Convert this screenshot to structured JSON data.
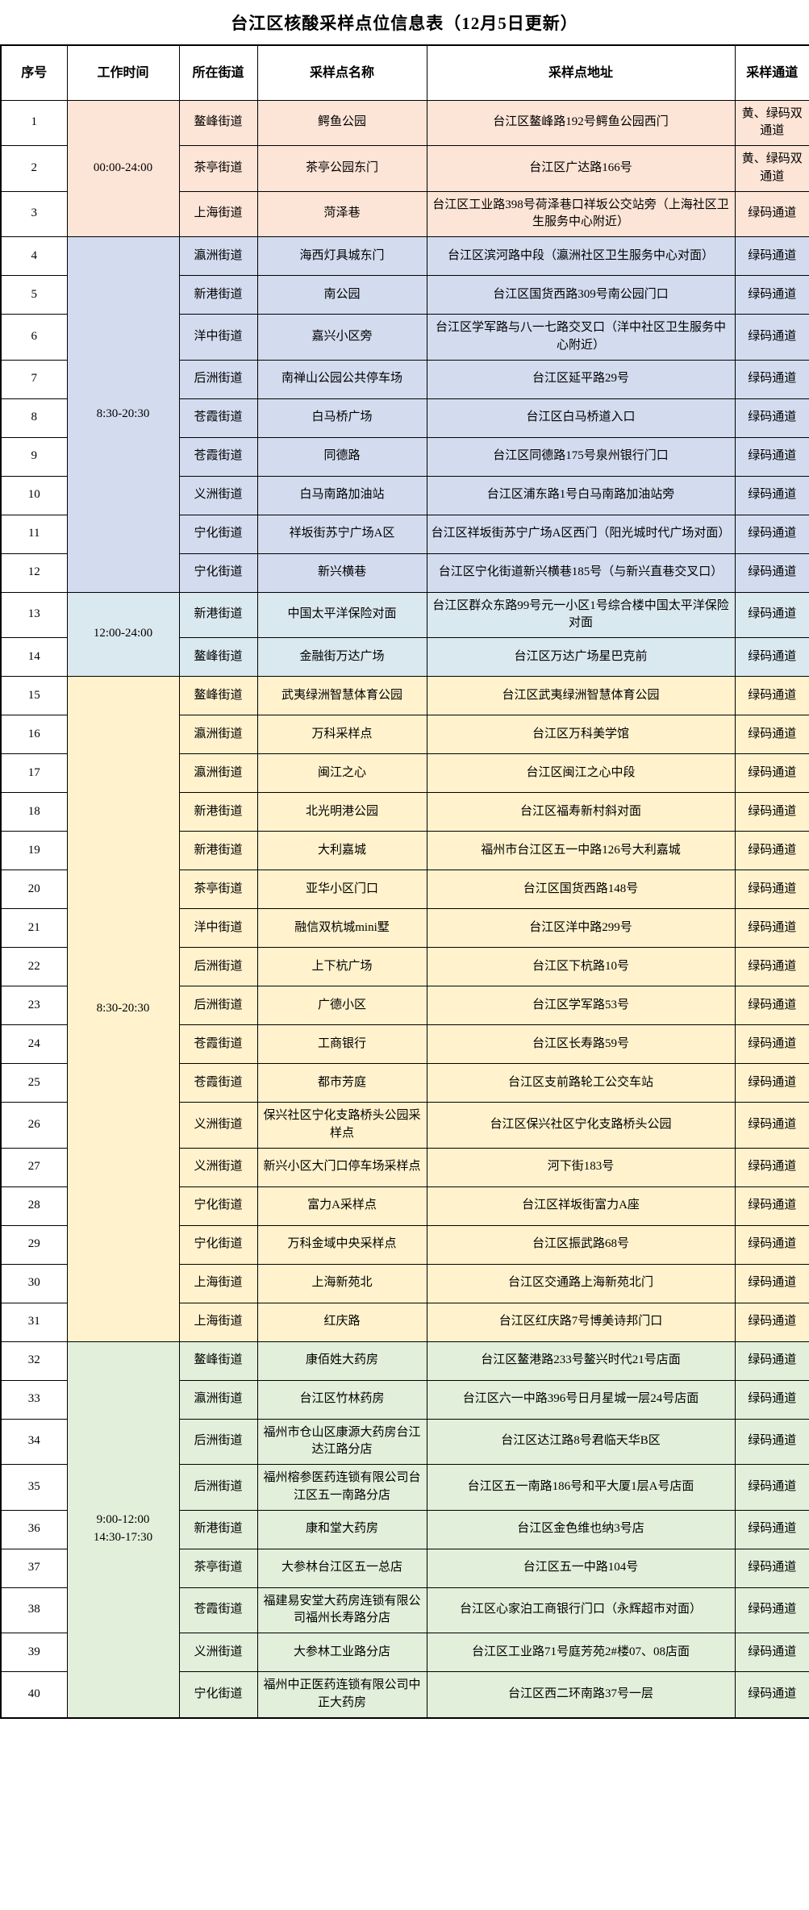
{
  "title": "台江区核酸采样点位信息表（12月5日更新）",
  "table": {
    "headers": [
      "序号",
      "工作时间",
      "所在街道",
      "采样点名称",
      "采样点地址",
      "采样通道"
    ],
    "group_colors": {
      "orange": "#FCE4D6",
      "blue": "#D3DCEF",
      "cyan": "#DAE8EF",
      "yellow": "#FFF2CC",
      "green": "#E2EFDA"
    },
    "time_groups": [
      {
        "time": "00:00-24:00",
        "color": "#FCE4D6",
        "rows": [
          {
            "no": "1",
            "street": "鳌峰街道",
            "name": "鳄鱼公园",
            "address": "台江区鳌峰路192号鳄鱼公园西门",
            "channel": "黄、绿码双通道"
          },
          {
            "no": "2",
            "street": "茶亭街道",
            "name": "茶亭公园东门",
            "address": "台江区广达路166号",
            "channel": "黄、绿码双通道"
          },
          {
            "no": "3",
            "street": "上海街道",
            "name": "菏泽巷",
            "address": "台江区工业路398号荷泽巷口祥坂公交站旁（上海社区卫生服务中心附近）",
            "channel": "绿码通道"
          }
        ]
      },
      {
        "time": "8:30-20:30",
        "color": "#D3DCEF",
        "rows": [
          {
            "no": "4",
            "street": "瀛洲街道",
            "name": "海西灯具城东门",
            "address": "台江区滨河路中段（瀛洲社区卫生服务中心对面）",
            "channel": "绿码通道"
          },
          {
            "no": "5",
            "street": "新港街道",
            "name": "南公园",
            "address": "台江区国货西路309号南公园门口",
            "channel": "绿码通道"
          },
          {
            "no": "6",
            "street": "洋中街道",
            "name": "嘉兴小区旁",
            "address": "台江区学军路与八一七路交叉口（洋中社区卫生服务中心附近）",
            "channel": "绿码通道"
          },
          {
            "no": "7",
            "street": "后洲街道",
            "name": "南禅山公园公共停车场",
            "address": "台江区延平路29号",
            "channel": "绿码通道"
          },
          {
            "no": "8",
            "street": "苍霞街道",
            "name": "白马桥广场",
            "address": "台江区白马桥道入口",
            "channel": "绿码通道"
          },
          {
            "no": "9",
            "street": "苍霞街道",
            "name": "同德路",
            "address": "台江区同德路175号泉州银行门口",
            "channel": "绿码通道"
          },
          {
            "no": "10",
            "street": "义洲街道",
            "name": "白马南路加油站",
            "address": "台江区浦东路1号白马南路加油站旁",
            "channel": "绿码通道"
          },
          {
            "no": "11",
            "street": "宁化街道",
            "name": "祥坂街苏宁广场A区",
            "address": "台江区祥坂街苏宁广场A区西门（阳光城时代广场对面）",
            "channel": "绿码通道"
          },
          {
            "no": "12",
            "street": "宁化街道",
            "name": "新兴横巷",
            "address": "台江区宁化街道新兴横巷185号（与新兴直巷交叉口）",
            "channel": "绿码通道"
          }
        ]
      },
      {
        "time": "12:00-24:00",
        "color": "#DAE8EF",
        "rows": [
          {
            "no": "13",
            "street": "新港街道",
            "name": "中国太平洋保险对面",
            "address": "台江区群众东路99号元一小区1号综合楼中国太平洋保险对面",
            "channel": "绿码通道"
          },
          {
            "no": "14",
            "street": "鳌峰街道",
            "name": "金融街万达广场",
            "address": "台江区万达广场星巴克前",
            "channel": "绿码通道"
          }
        ]
      },
      {
        "time": "8:30-20:30",
        "color": "#FFF2CC",
        "rows": [
          {
            "no": "15",
            "street": "鳌峰街道",
            "name": "武夷绿洲智慧体育公园",
            "address": "台江区武夷绿洲智慧体育公园",
            "channel": "绿码通道"
          },
          {
            "no": "16",
            "street": "瀛洲街道",
            "name": "万科采样点",
            "address": "台江区万科美学馆",
            "channel": "绿码通道"
          },
          {
            "no": "17",
            "street": "瀛洲街道",
            "name": "闽江之心",
            "address": "台江区闽江之心中段",
            "channel": "绿码通道"
          },
          {
            "no": "18",
            "street": "新港街道",
            "name": "北光明港公园",
            "address": "台江区福寿新村斜对面",
            "channel": "绿码通道"
          },
          {
            "no": "19",
            "street": "新港街道",
            "name": "大利嘉城",
            "address": "福州市台江区五一中路126号大利嘉城",
            "channel": "绿码通道"
          },
          {
            "no": "20",
            "street": "茶亭街道",
            "name": "亚华小区门口",
            "address": "台江区国货西路148号",
            "channel": "绿码通道"
          },
          {
            "no": "21",
            "street": "洋中街道",
            "name": "融信双杭城mini墅",
            "address": "台江区洋中路299号",
            "channel": "绿码通道"
          },
          {
            "no": "22",
            "street": "后洲街道",
            "name": "上下杭广场",
            "address": "台江区下杭路10号",
            "channel": "绿码通道"
          },
          {
            "no": "23",
            "street": "后洲街道",
            "name": "广德小区",
            "address": "台江区学军路53号",
            "channel": "绿码通道"
          },
          {
            "no": "24",
            "street": "苍霞街道",
            "name": "工商银行",
            "address": "台江区长寿路59号",
            "channel": "绿码通道"
          },
          {
            "no": "25",
            "street": "苍霞街道",
            "name": "都市芳庭",
            "address": "台江区支前路轮工公交车站",
            "channel": "绿码通道"
          },
          {
            "no": "26",
            "street": "义洲街道",
            "name": "保兴社区宁化支路桥头公园采样点",
            "address": "台江区保兴社区宁化支路桥头公园",
            "channel": "绿码通道"
          },
          {
            "no": "27",
            "street": "义洲街道",
            "name": "新兴小区大门口停车场采样点",
            "address": "河下街183号",
            "channel": "绿码通道"
          },
          {
            "no": "28",
            "street": "宁化街道",
            "name": "富力A采样点",
            "address": "台江区祥坂街富力A座",
            "channel": "绿码通道"
          },
          {
            "no": "29",
            "street": "宁化街道",
            "name": "万科金域中央采样点",
            "address": "台江区振武路68号",
            "channel": "绿码通道"
          },
          {
            "no": "30",
            "street": "上海街道",
            "name": "上海新苑北",
            "address": "台江区交通路上海新苑北门",
            "channel": "绿码通道"
          },
          {
            "no": "31",
            "street": "上海街道",
            "name": "红庆路",
            "address": "台江区红庆路7号博美诗邦门口",
            "channel": "绿码通道"
          }
        ]
      },
      {
        "time": "9:00-12:00\n14:30-17:30",
        "color": "#E2EFDA",
        "rows": [
          {
            "no": "32",
            "street": "鳌峰街道",
            "name": "康佰姓大药房",
            "address": "台江区鳌港路233号鳌兴时代21号店面",
            "channel": "绿码通道"
          },
          {
            "no": "33",
            "street": "瀛洲街道",
            "name": "台江区竹林药房",
            "address": "台江区六一中路396号日月星城一层24号店面",
            "channel": "绿码通道"
          },
          {
            "no": "34",
            "street": "后洲街道",
            "name": "福州市仓山区康源大药房台江达江路分店",
            "address": "台江区达江路8号君临天华B区",
            "channel": "绿码通道"
          },
          {
            "no": "35",
            "street": "后洲街道",
            "name": "福州榕参医药连锁有限公司台江区五一南路分店",
            "address": "台江区五一南路186号和平大厦1层A号店面",
            "channel": "绿码通道"
          },
          {
            "no": "36",
            "street": "新港街道",
            "name": "康和堂大药房",
            "address": "台江区金色维也纳3号店",
            "channel": "绿码通道"
          },
          {
            "no": "37",
            "street": "茶亭街道",
            "name": "大参林台江区五一总店",
            "address": "台江区五一中路104号",
            "channel": "绿码通道"
          },
          {
            "no": "38",
            "street": "苍霞街道",
            "name": "福建易安堂大药房连锁有限公司福州长寿路分店",
            "address": "台江区心家泊工商银行门口（永辉超市对面）",
            "channel": "绿码通道"
          },
          {
            "no": "39",
            "street": "义洲街道",
            "name": "大参林工业路分店",
            "address": "台江区工业路71号庭芳苑2#楼07、08店面",
            "channel": "绿码通道"
          },
          {
            "no": "40",
            "street": "宁化街道",
            "name": "福州中正医药连锁有限公司中正大药房",
            "address": "台江区西二环南路37号一层",
            "channel": "绿码通道"
          }
        ]
      }
    ]
  }
}
